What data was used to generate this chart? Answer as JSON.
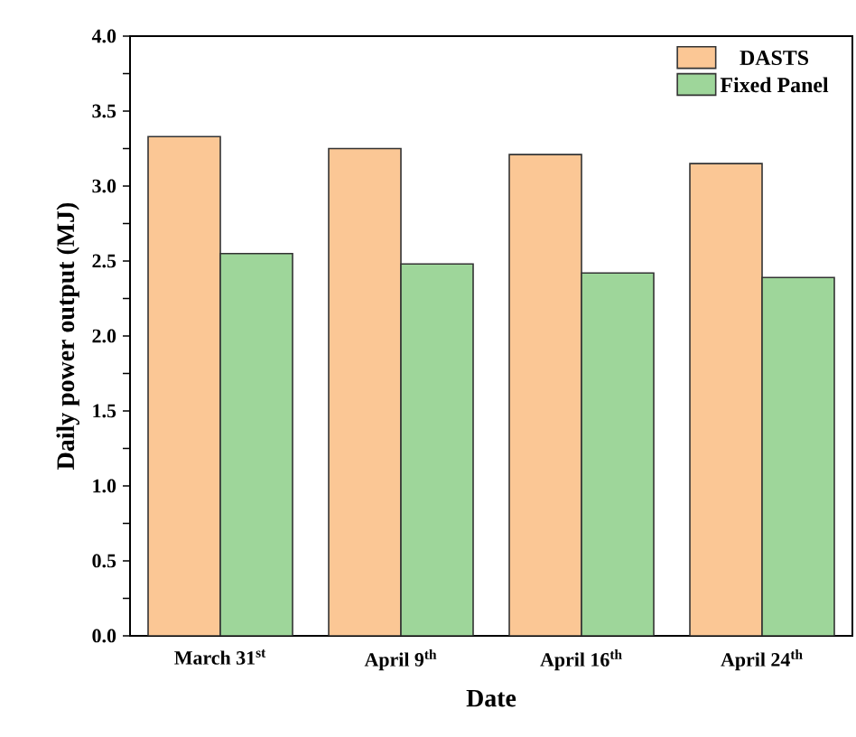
{
  "chart_data": {
    "type": "bar",
    "xlabel": "Date",
    "ylabel": "Daily power output (MJ)",
    "categories": [
      "March 31$^{st}$",
      "April 9$^{th}$",
      "April 16$^{th}$",
      "April 24$^{th}$"
    ],
    "series": [
      {
        "name": "DASTS",
        "color": "#fbc795",
        "values": [
          3.33,
          3.25,
          3.21,
          3.15
        ]
      },
      {
        "name": "Fixed Panel",
        "color": "#9ed69a",
        "values": [
          2.55,
          2.48,
          2.42,
          2.39
        ]
      }
    ],
    "ylim": [
      0,
      4
    ],
    "yticks": [
      {
        "value": 0,
        "label": "0.0"
      },
      {
        "value": 0.25,
        "label": null
      },
      {
        "value": 0.5,
        "label": "0.5"
      },
      {
        "value": 0.75,
        "label": null
      },
      {
        "value": 1,
        "label": "1.0"
      },
      {
        "value": 1.25,
        "label": null
      },
      {
        "value": 1.5,
        "label": "1.5"
      },
      {
        "value": 1.75,
        "label": null
      },
      {
        "value": 2,
        "label": "2.0"
      },
      {
        "value": 2.25,
        "label": null
      },
      {
        "value": 2.5,
        "label": "2.5"
      },
      {
        "value": 2.75,
        "label": null
      },
      {
        "value": 3,
        "label": "3.0"
      },
      {
        "value": 3.25,
        "label": null
      },
      {
        "value": 3.5,
        "label": "3.5"
      },
      {
        "value": 3.75,
        "label": null
      },
      {
        "value": 4,
        "label": "4.0"
      }
    ],
    "legend": "top right"
  }
}
